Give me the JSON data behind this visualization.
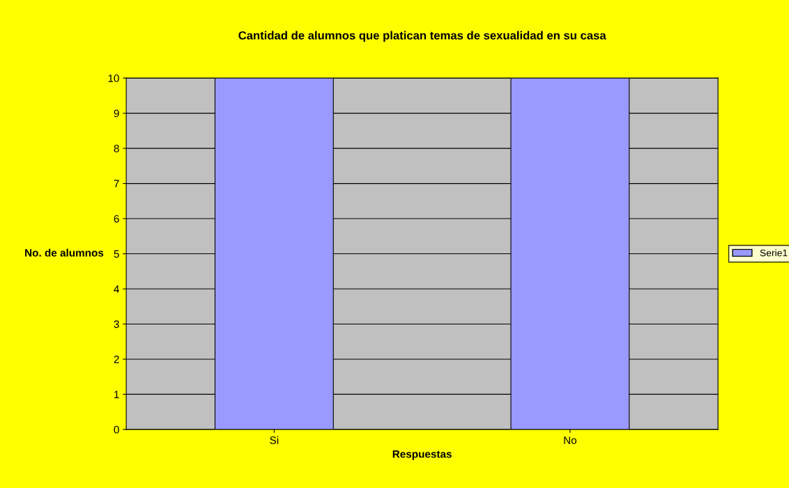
{
  "chart_data": {
    "type": "bar",
    "title": "Cantidad de alumnos que platican temas de sexualidad en su casa",
    "xlabel": "Respuestas",
    "ylabel": "No. de alumnos",
    "categories": [
      "Si",
      "No"
    ],
    "series": [
      {
        "name": "Serie1",
        "color": "#9999ff",
        "values": [
          10,
          10
        ]
      }
    ],
    "ylim": [
      0,
      10
    ],
    "yticks": [
      0,
      1,
      2,
      3,
      4,
      5,
      6,
      7,
      8,
      9,
      10
    ],
    "grid": "y",
    "legend": "right"
  }
}
